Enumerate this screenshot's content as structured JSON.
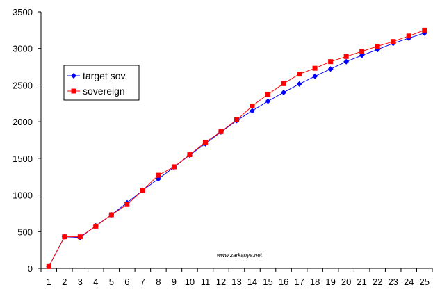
{
  "chart_data": {
    "type": "line",
    "x": [
      1,
      2,
      3,
      4,
      5,
      6,
      7,
      8,
      9,
      10,
      11,
      12,
      13,
      14,
      15,
      16,
      17,
      18,
      19,
      20,
      21,
      22,
      23,
      24,
      25
    ],
    "series": [
      {
        "name": "target sov.",
        "color": "#0000FF",
        "marker": "diamond",
        "values": [
          25,
          430,
          420,
          580,
          730,
          895,
          1065,
          1220,
          1380,
          1545,
          1700,
          1860,
          2015,
          2150,
          2280,
          2400,
          2515,
          2620,
          2720,
          2820,
          2905,
          2985,
          3070,
          3140,
          3210
        ]
      },
      {
        "name": "sovereign",
        "color": "#FF0000",
        "marker": "square",
        "values": [
          25,
          430,
          430,
          575,
          730,
          870,
          1065,
          1270,
          1385,
          1550,
          1720,
          1865,
          2025,
          2215,
          2375,
          2520,
          2650,
          2730,
          2820,
          2890,
          2960,
          3030,
          3095,
          3170,
          3250
        ]
      }
    ],
    "ylim": [
      0,
      3500
    ],
    "yticks": [
      0,
      500,
      1000,
      1500,
      2000,
      2500,
      3000,
      3500
    ],
    "xticks": [
      1,
      2,
      3,
      4,
      5,
      6,
      7,
      8,
      9,
      10,
      11,
      12,
      13,
      14,
      15,
      16,
      17,
      18,
      19,
      20,
      21,
      22,
      23,
      24,
      25
    ],
    "grid": false,
    "legend_position": "upper-left inside plot",
    "annotation": "www.zarkanya.net"
  }
}
